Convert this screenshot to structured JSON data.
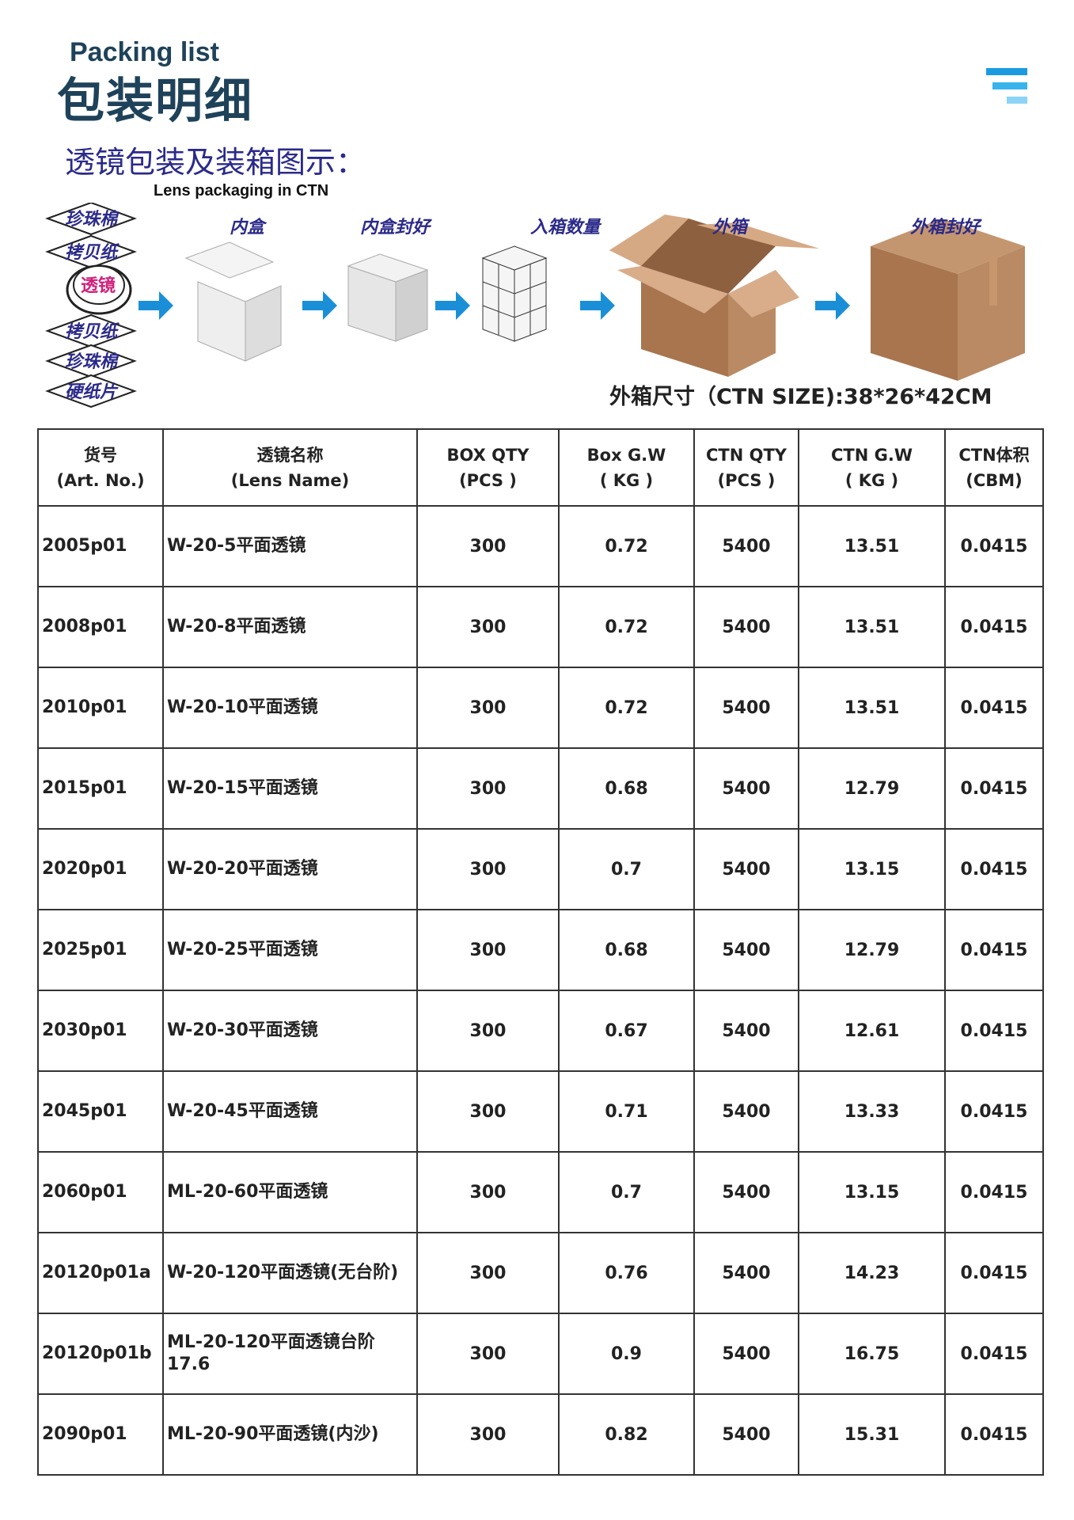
{
  "header": {
    "title_en": "Packing list",
    "title_cn": "包装明细",
    "menu_icon": "menu-lines-icon",
    "menu_colors": [
      "#1a9be0",
      "#39b3ec",
      "#8dd3f5"
    ]
  },
  "section": {
    "title_cn": "透镜包装及装箱图示：",
    "title_en": "Lens packaging in CTN"
  },
  "diagram": {
    "layers": [
      "珍珠棉",
      "拷贝纸",
      "透镜",
      "拷贝纸",
      "珍珠棉",
      "硬纸片"
    ],
    "steps": [
      "内盒",
      "内盒封好",
      "入箱数量",
      "外箱",
      "外箱封好"
    ],
    "arrow_color": "#1a8fd8",
    "carton_color": "#a8754f"
  },
  "ctn_size": "外箱尺寸（CTN SIZE):38*26*42CM",
  "table": {
    "headers": [
      [
        "货号",
        "(Art. No.)"
      ],
      [
        "透镜名称",
        "(Lens  Name)"
      ],
      [
        "BOX QTY",
        "(PCS )"
      ],
      [
        "Box G.W",
        "( KG )"
      ],
      [
        "CTN QTY",
        "(PCS )"
      ],
      [
        "CTN G.W",
        "( KG )"
      ],
      [
        "CTN体积",
        "(CBM)"
      ]
    ],
    "rows": [
      [
        "2005p01",
        "W-20-5平面透镜",
        "300",
        "0.72",
        "5400",
        "13.51",
        "0.0415"
      ],
      [
        "2008p01",
        "W-20-8平面透镜",
        "300",
        "0.72",
        "5400",
        "13.51",
        "0.0415"
      ],
      [
        "2010p01",
        "W-20-10平面透镜",
        "300",
        "0.72",
        "5400",
        "13.51",
        "0.0415"
      ],
      [
        "2015p01",
        "W-20-15平面透镜",
        "300",
        "0.68",
        "5400",
        "12.79",
        "0.0415"
      ],
      [
        "2020p01",
        "W-20-20平面透镜",
        "300",
        "0.7",
        "5400",
        "13.15",
        "0.0415"
      ],
      [
        "2025p01",
        "W-20-25平面透镜",
        "300",
        "0.68",
        "5400",
        "12.79",
        "0.0415"
      ],
      [
        "2030p01",
        "W-20-30平面透镜",
        "300",
        "0.67",
        "5400",
        "12.61",
        "0.0415"
      ],
      [
        "2045p01",
        "W-20-45平面透镜",
        "300",
        "0.71",
        "5400",
        "13.33",
        "0.0415"
      ],
      [
        "2060p01",
        "ML-20-60平面透镜",
        "300",
        "0.7",
        "5400",
        "13.15",
        "0.0415"
      ],
      [
        "20120p01a",
        "W-20-120平面透镜(无台阶)",
        "300",
        "0.76",
        "5400",
        "14.23",
        "0.0415"
      ],
      [
        "20120p01b",
        "ML-20-120平面透镜台阶17.6",
        "300",
        "0.9",
        "5400",
        "16.75",
        "0.0415"
      ],
      [
        "2090p01",
        "ML-20-90平面透镜(内沙)",
        "300",
        "0.82",
        "5400",
        "15.31",
        "0.0415"
      ]
    ]
  }
}
